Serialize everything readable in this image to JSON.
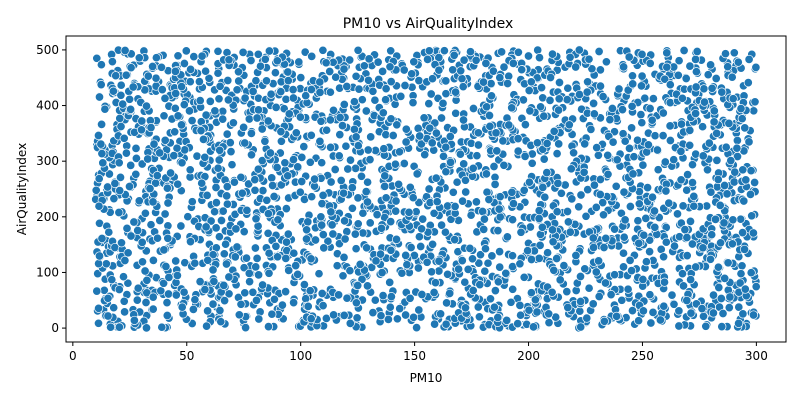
{
  "chart_data": {
    "type": "scatter",
    "title": "PM10 vs AirQualityIndex",
    "xlabel": "PM10",
    "ylabel": "AirQualityIndex",
    "xlim": [
      -3,
      313
    ],
    "ylim": [
      -25,
      525
    ],
    "xticks": [
      0,
      50,
      100,
      150,
      200,
      250,
      300
    ],
    "yticks": [
      0,
      100,
      200,
      300,
      400,
      500
    ],
    "grid": false,
    "legend": "none",
    "marker_color": "#1f77b4",
    "marker_edge": "#ffffff",
    "point_count": 3000,
    "x_range": [
      10,
      300
    ],
    "y_range": [
      0,
      500
    ],
    "points": [
      [
        10.5,
        485
      ],
      [
        12.1,
        442
      ],
      [
        14.8,
        398
      ],
      [
        11.3,
        275
      ],
      [
        13.6,
        232
      ],
      [
        12.0,
        158
      ],
      [
        10.9,
        98
      ],
      [
        14.2,
        22
      ],
      [
        16.4,
        7
      ],
      [
        19.8,
        12
      ],
      [
        21.5,
        4
      ],
      [
        23.9,
        455
      ],
      [
        25.1,
        470
      ],
      [
        28.6,
        412
      ],
      [
        31.2,
        498
      ],
      [
        33.4,
        360
      ],
      [
        35.8,
        305
      ],
      [
        38.1,
        262
      ],
      [
        40.5,
        205
      ],
      [
        42.9,
        150
      ],
      [
        45.2,
        95
      ],
      [
        47.6,
        42
      ],
      [
        50.3,
        15
      ],
      [
        53.1,
        488
      ],
      [
        55.6,
        430
      ],
      [
        58.0,
        372
      ],
      [
        60.4,
        318
      ],
      [
        62.9,
        266
      ],
      [
        65.3,
        210
      ],
      [
        67.8,
        158
      ],
      [
        70.2,
        104
      ],
      [
        72.7,
        55
      ],
      [
        75.1,
        8
      ],
      [
        77.6,
        492
      ],
      [
        80.0,
        436
      ],
      [
        82.4,
        380
      ],
      [
        84.9,
        322
      ],
      [
        87.3,
        270
      ],
      [
        89.8,
        214
      ],
      [
        92.2,
        160
      ],
      [
        94.7,
        108
      ],
      [
        97.1,
        52
      ],
      [
        99.6,
        5
      ],
      [
        102.0,
        496
      ],
      [
        104.5,
        440
      ],
      [
        106.9,
        384
      ],
      [
        109.4,
        326
      ],
      [
        111.8,
        274
      ],
      [
        114.3,
        218
      ],
      [
        116.7,
        164
      ],
      [
        119.2,
        112
      ],
      [
        121.6,
        56
      ],
      [
        124.1,
        9
      ],
      [
        126.5,
        487
      ],
      [
        129.0,
        431
      ],
      [
        131.4,
        375
      ],
      [
        133.9,
        317
      ],
      [
        136.3,
        265
      ],
      [
        138.8,
        209
      ],
      [
        141.2,
        155
      ],
      [
        143.7,
        103
      ],
      [
        146.1,
        47
      ],
      [
        148.6,
        14
      ],
      [
        151.0,
        490
      ],
      [
        153.5,
        434
      ],
      [
        155.9,
        378
      ],
      [
        158.4,
        320
      ],
      [
        160.8,
        268
      ],
      [
        163.3,
        212
      ],
      [
        165.7,
        158
      ],
      [
        168.2,
        106
      ],
      [
        170.6,
        50
      ],
      [
        173.1,
        3
      ],
      [
        175.5,
        493
      ],
      [
        178.0,
        437
      ],
      [
        180.4,
        381
      ],
      [
        182.9,
        323
      ],
      [
        185.3,
        271
      ],
      [
        187.8,
        215
      ],
      [
        190.2,
        161
      ],
      [
        192.7,
        109
      ],
      [
        195.1,
        53
      ],
      [
        197.6,
        6
      ],
      [
        200.0,
        489
      ],
      [
        202.5,
        433
      ],
      [
        204.9,
        377
      ],
      [
        207.4,
        319
      ],
      [
        209.8,
        267
      ],
      [
        212.3,
        211
      ],
      [
        214.7,
        157
      ],
      [
        217.2,
        105
      ],
      [
        219.6,
        49
      ],
      [
        222.1,
        2
      ],
      [
        224.5,
        494
      ],
      [
        227.0,
        438
      ],
      [
        229.4,
        382
      ],
      [
        231.9,
        324
      ],
      [
        234.3,
        272
      ],
      [
        236.8,
        216
      ],
      [
        239.2,
        162
      ],
      [
        241.7,
        110
      ],
      [
        244.1,
        54
      ],
      [
        246.6,
        7
      ],
      [
        249.0,
        491
      ],
      [
        251.5,
        435
      ],
      [
        253.9,
        379
      ],
      [
        256.4,
        321
      ],
      [
        258.8,
        269
      ],
      [
        261.3,
        213
      ],
      [
        263.7,
        159
      ],
      [
        266.2,
        107
      ],
      [
        268.6,
        51
      ],
      [
        271.1,
        4
      ],
      [
        273.5,
        495
      ],
      [
        276.0,
        439
      ],
      [
        278.4,
        383
      ],
      [
        280.9,
        325
      ],
      [
        283.3,
        273
      ],
      [
        285.8,
        217
      ],
      [
        288.2,
        163
      ],
      [
        290.7,
        111
      ],
      [
        293.1,
        55
      ],
      [
        295.6,
        8
      ],
      [
        298.0,
        492
      ],
      [
        299.5,
        466
      ],
      [
        299.2,
        204
      ],
      [
        298.8,
        164
      ],
      [
        297.5,
        62
      ],
      [
        299.8,
        22
      ],
      [
        296.4,
        340
      ]
    ]
  }
}
